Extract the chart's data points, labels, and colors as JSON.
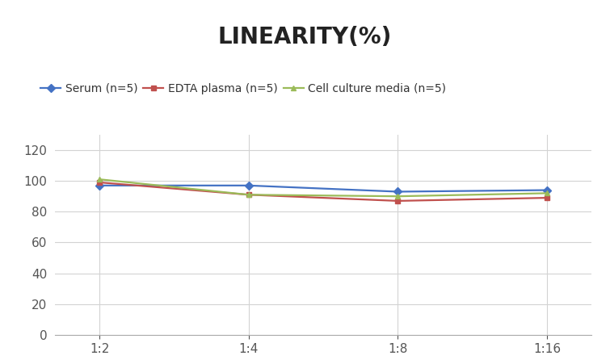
{
  "title": "LINEARITY(%)",
  "title_fontsize": 20,
  "title_fontweight": "bold",
  "x_labels": [
    "1:2",
    "1:4",
    "1:8",
    "1:16"
  ],
  "x_positions": [
    0,
    1,
    2,
    3
  ],
  "series": [
    {
      "label": "Serum (n=5)",
      "values": [
        97,
        97,
        93,
        94
      ],
      "color": "#4472C4",
      "marker": "D",
      "markersize": 5,
      "linewidth": 1.6
    },
    {
      "label": "EDTA plasma (n=5)",
      "values": [
        99,
        91,
        87,
        89
      ],
      "color": "#C0504D",
      "marker": "s",
      "markersize": 5,
      "linewidth": 1.6
    },
    {
      "label": "Cell culture media (n=5)",
      "values": [
        101,
        91,
        90,
        92
      ],
      "color": "#9BBB59",
      "marker": "^",
      "markersize": 5,
      "linewidth": 1.6
    }
  ],
  "ylim": [
    0,
    130
  ],
  "yticks": [
    0,
    20,
    40,
    60,
    80,
    100,
    120
  ],
  "grid_color": "#D3D3D3",
  "background_color": "#FFFFFF",
  "legend_fontsize": 10,
  "tick_fontsize": 11,
  "tick_color": "#555555"
}
